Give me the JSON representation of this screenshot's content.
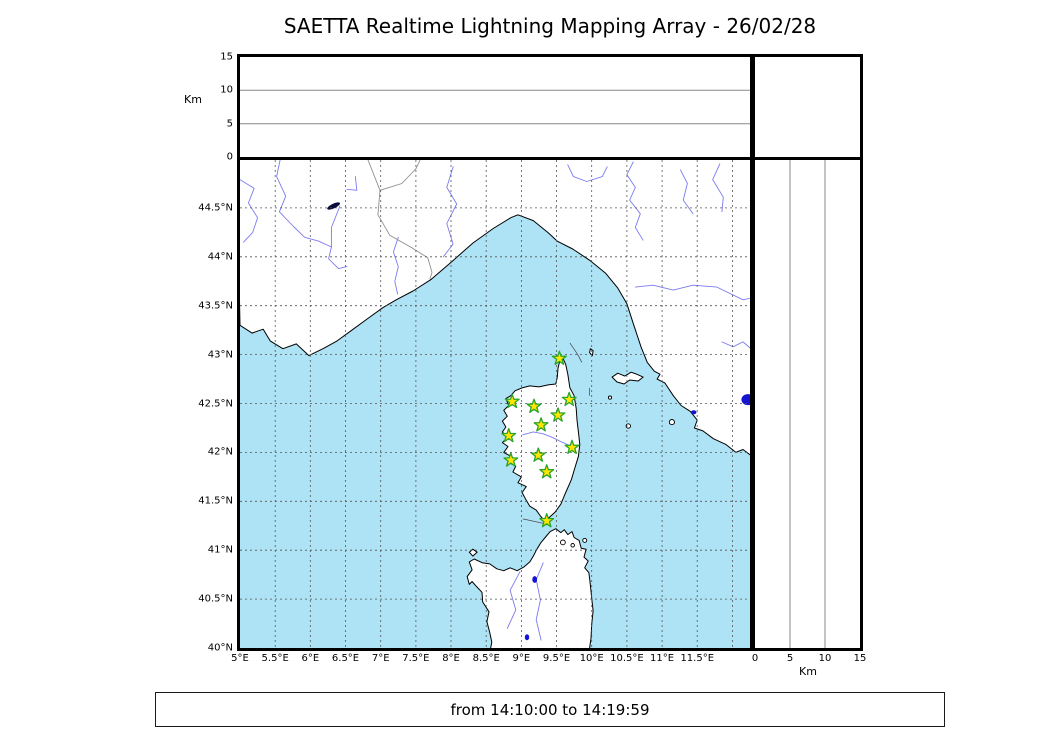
{
  "title": "SAETTA Realtime Lightning Mapping Array - 26/02/28",
  "time_range": "from 14:10:00 to 14:19:59",
  "colors": {
    "sea": "#aee2f5",
    "land": "#ffffff",
    "coast": "#000000",
    "river": "#7b7bf0",
    "country_border": "#909090",
    "grid": "#555555",
    "panel_grid": "#888888",
    "star_fill": "#ffe500",
    "star_stroke": "#28a428",
    "lake_blue": "#1414d2",
    "lake_dark": "#0a0a3c"
  },
  "altitude_axis": {
    "label": "Km",
    "max": 15,
    "ticks": [
      {
        "value": 0,
        "label": "0"
      },
      {
        "value": 5,
        "label": "5"
      },
      {
        "value": 10,
        "label": "10"
      },
      {
        "value": 15,
        "label": "15"
      }
    ],
    "gridlines": [
      5,
      10
    ]
  },
  "longitude_axis": {
    "min": 5,
    "max": 12.25,
    "grid_step": 0.5,
    "ticks": [
      {
        "value": 5,
        "label": "5°E"
      },
      {
        "value": 5.5,
        "label": "5.5°E"
      },
      {
        "value": 6,
        "label": "6°E"
      },
      {
        "value": 6.5,
        "label": "6.5°E"
      },
      {
        "value": 7,
        "label": "7°E"
      },
      {
        "value": 7.5,
        "label": "7.5°E"
      },
      {
        "value": 8,
        "label": "8°E"
      },
      {
        "value": 8.5,
        "label": "8.5°E"
      },
      {
        "value": 9,
        "label": "9°E"
      },
      {
        "value": 9.5,
        "label": "9.5°E"
      },
      {
        "value": 10,
        "label": "10°E"
      },
      {
        "value": 10.5,
        "label": "10.5°E"
      },
      {
        "value": 11,
        "label": "11°E"
      },
      {
        "value": 11.5,
        "label": "11.5°E"
      }
    ]
  },
  "latitude_axis": {
    "min": 40,
    "max": 44.99,
    "grid_step": 0.5,
    "ticks": [
      {
        "value": 44.5,
        "label": "44.5°N"
      },
      {
        "value": 44,
        "label": "44°N"
      },
      {
        "value": 43.5,
        "label": "43.5°N"
      },
      {
        "value": 43,
        "label": "43°N"
      },
      {
        "value": 42.5,
        "label": "42.5°N"
      },
      {
        "value": 42,
        "label": "42°N"
      },
      {
        "value": 41.5,
        "label": "41.5°N"
      },
      {
        "value": 41,
        "label": "41°N"
      },
      {
        "value": 40.5,
        "label": "40.5°N"
      },
      {
        "value": 40,
        "label": "40°N"
      }
    ]
  },
  "stations": [
    [
      9.54,
      42.96
    ],
    [
      8.87,
      42.52
    ],
    [
      9.18,
      42.47
    ],
    [
      9.68,
      42.54
    ],
    [
      9.52,
      42.38
    ],
    [
      9.28,
      42.28
    ],
    [
      8.82,
      42.17
    ],
    [
      9.72,
      42.05
    ],
    [
      8.85,
      41.92
    ],
    [
      9.24,
      41.97
    ],
    [
      9.36,
      41.8
    ],
    [
      9.36,
      41.3
    ]
  ],
  "map": {
    "land": {
      "continent": [
        [
          5.0,
          43.3
        ],
        [
          5.17,
          43.22
        ],
        [
          5.33,
          43.26
        ],
        [
          5.43,
          43.14
        ],
        [
          5.61,
          43.06
        ],
        [
          5.8,
          43.11
        ],
        [
          5.98,
          42.99
        ],
        [
          6.18,
          43.06
        ],
        [
          6.38,
          43.14
        ],
        [
          6.59,
          43.25
        ],
        [
          6.82,
          43.37
        ],
        [
          7.03,
          43.48
        ],
        [
          7.22,
          43.56
        ],
        [
          7.46,
          43.65
        ],
        [
          7.72,
          43.77
        ],
        [
          8.01,
          43.95
        ],
        [
          8.31,
          44.14
        ],
        [
          8.6,
          44.29
        ],
        [
          8.85,
          44.4
        ],
        [
          8.95,
          44.43
        ],
        [
          9.17,
          44.37
        ],
        [
          9.39,
          44.24
        ],
        [
          9.51,
          44.16
        ],
        [
          9.73,
          44.08
        ],
        [
          9.98,
          43.96
        ],
        [
          10.2,
          43.83
        ],
        [
          10.37,
          43.68
        ],
        [
          10.5,
          43.52
        ],
        [
          10.59,
          43.32
        ],
        [
          10.7,
          43.08
        ],
        [
          10.79,
          42.92
        ],
        [
          10.89,
          42.83
        ],
        [
          10.97,
          42.8
        ],
        [
          10.93,
          42.75
        ],
        [
          11.04,
          42.71
        ],
        [
          11.16,
          42.58
        ],
        [
          11.27,
          42.48
        ],
        [
          11.4,
          42.42
        ],
        [
          11.5,
          42.33
        ],
        [
          11.46,
          42.25
        ],
        [
          11.58,
          42.22
        ],
        [
          11.73,
          42.14
        ],
        [
          11.91,
          42.08
        ],
        [
          12.05,
          42.0
        ],
        [
          12.15,
          42.03
        ],
        [
          12.3,
          41.95
        ],
        [
          12.3,
          45.05
        ],
        [
          4.95,
          45.05
        ]
      ],
      "corsica": [
        [
          9.58,
          42.98
        ],
        [
          9.63,
          42.9
        ],
        [
          9.66,
          42.8
        ],
        [
          9.69,
          42.66
        ],
        [
          9.75,
          42.58
        ],
        [
          9.78,
          42.45
        ],
        [
          9.79,
          42.33
        ],
        [
          9.81,
          42.21
        ],
        [
          9.83,
          42.08
        ],
        [
          9.81,
          41.96
        ],
        [
          9.76,
          41.84
        ],
        [
          9.71,
          41.72
        ],
        [
          9.63,
          41.59
        ],
        [
          9.56,
          41.47
        ],
        [
          9.48,
          41.39
        ],
        [
          9.39,
          41.33
        ],
        [
          9.34,
          41.29
        ],
        [
          9.27,
          41.35
        ],
        [
          9.21,
          41.41
        ],
        [
          9.12,
          41.45
        ],
        [
          9.07,
          41.51
        ],
        [
          9.01,
          41.59
        ],
        [
          9.07,
          41.65
        ],
        [
          8.95,
          41.69
        ],
        [
          9.0,
          41.75
        ],
        [
          8.88,
          41.8
        ],
        [
          8.92,
          41.86
        ],
        [
          8.81,
          41.9
        ],
        [
          8.85,
          41.96
        ],
        [
          8.75,
          42.0
        ],
        [
          8.81,
          42.06
        ],
        [
          8.73,
          42.1
        ],
        [
          8.8,
          42.15
        ],
        [
          8.73,
          42.21
        ],
        [
          8.78,
          42.26
        ],
        [
          8.73,
          42.32
        ],
        [
          8.8,
          42.37
        ],
        [
          8.75,
          42.43
        ],
        [
          8.82,
          42.48
        ],
        [
          8.78,
          42.55
        ],
        [
          8.85,
          42.58
        ],
        [
          8.91,
          42.63
        ],
        [
          9.01,
          42.66
        ],
        [
          9.12,
          42.68
        ],
        [
          9.25,
          42.67
        ],
        [
          9.38,
          42.69
        ],
        [
          9.49,
          42.7
        ],
        [
          9.51,
          42.77
        ],
        [
          9.52,
          42.86
        ],
        [
          9.55,
          42.95
        ]
      ],
      "sardinia": [
        [
          9.41,
          41.19
        ],
        [
          9.49,
          41.22
        ],
        [
          9.56,
          41.18
        ],
        [
          9.61,
          41.21
        ],
        [
          9.66,
          41.16
        ],
        [
          9.72,
          41.19
        ],
        [
          9.75,
          41.13
        ],
        [
          9.82,
          41.1
        ],
        [
          9.85,
          41.02
        ],
        [
          9.92,
          41.01
        ],
        [
          9.89,
          40.93
        ],
        [
          9.95,
          40.89
        ],
        [
          9.9,
          40.82
        ],
        [
          9.96,
          40.77
        ],
        [
          9.98,
          40.65
        ],
        [
          10.0,
          40.51
        ],
        [
          10.02,
          40.38
        ],
        [
          10.0,
          40.24
        ],
        [
          9.99,
          40.1
        ],
        [
          9.96,
          39.95
        ],
        [
          8.55,
          39.95
        ],
        [
          8.58,
          40.06
        ],
        [
          8.55,
          40.16
        ],
        [
          8.51,
          40.27
        ],
        [
          8.54,
          40.37
        ],
        [
          8.45,
          40.47
        ],
        [
          8.44,
          40.57
        ],
        [
          8.36,
          40.63
        ],
        [
          8.3,
          40.68
        ],
        [
          8.26,
          40.65
        ],
        [
          8.23,
          40.73
        ],
        [
          8.3,
          40.8
        ],
        [
          8.26,
          40.88
        ],
        [
          8.33,
          40.91
        ],
        [
          8.45,
          40.87
        ],
        [
          8.55,
          40.86
        ],
        [
          8.65,
          40.81
        ],
        [
          8.75,
          40.79
        ],
        [
          8.84,
          40.82
        ],
        [
          8.94,
          40.79
        ],
        [
          9.04,
          40.83
        ],
        [
          9.12,
          40.88
        ],
        [
          9.17,
          40.94
        ],
        [
          9.22,
          41.01
        ],
        [
          9.28,
          41.08
        ],
        [
          9.35,
          41.14
        ]
      ],
      "elba": [
        [
          10.29,
          42.77
        ],
        [
          10.37,
          42.81
        ],
        [
          10.47,
          42.78
        ],
        [
          10.56,
          42.82
        ],
        [
          10.64,
          42.8
        ],
        [
          10.73,
          42.77
        ],
        [
          10.66,
          42.73
        ],
        [
          10.54,
          42.74
        ],
        [
          10.46,
          42.7
        ],
        [
          10.36,
          42.72
        ]
      ],
      "capraia": [
        [
          9.98,
          43.06
        ],
        [
          10.02,
          43.04
        ],
        [
          10.01,
          42.99
        ],
        [
          9.97,
          43.02
        ]
      ],
      "asinara": [
        [
          8.26,
          40.98
        ],
        [
          8.31,
          41.01
        ],
        [
          8.37,
          40.98
        ],
        [
          8.31,
          40.94
        ]
      ]
    },
    "island_dots": [
      {
        "lon": 10.52,
        "lat": 42.27,
        "r": 2.2
      },
      {
        "lon": 11.14,
        "lat": 42.31,
        "r": 2.6
      },
      {
        "lon": 10.26,
        "lat": 42.56,
        "r": 1.6
      },
      {
        "lon": 9.59,
        "lat": 41.08,
        "r": 2.4
      },
      {
        "lon": 9.73,
        "lat": 41.05,
        "r": 1.8
      },
      {
        "lon": 9.9,
        "lat": 41.1,
        "r": 2.0
      }
    ],
    "rivers": [
      [
        [
          5.0,
          44.79
        ],
        [
          5.2,
          44.7
        ],
        [
          5.12,
          44.55
        ],
        [
          5.25,
          44.4
        ],
        [
          5.18,
          44.25
        ],
        [
          5.05,
          44.15
        ]
      ],
      [
        [
          5.57,
          44.99
        ],
        [
          5.52,
          44.82
        ],
        [
          5.65,
          44.62
        ],
        [
          5.56,
          44.46
        ],
        [
          5.76,
          44.31
        ],
        [
          5.92,
          44.2
        ],
        [
          6.12,
          44.16
        ],
        [
          6.3,
          44.1
        ],
        [
          6.26,
          43.98
        ],
        [
          6.4,
          43.88
        ],
        [
          6.52,
          43.9
        ]
      ],
      [
        [
          6.42,
          44.52
        ],
        [
          6.3,
          44.3
        ],
        [
          6.3,
          44.1
        ]
      ],
      [
        [
          6.64,
          44.82
        ],
        [
          6.66,
          44.68
        ],
        [
          6.52,
          44.69
        ]
      ],
      [
        [
          8.03,
          44.92
        ],
        [
          7.94,
          44.71
        ],
        [
          8.08,
          44.54
        ],
        [
          7.94,
          44.34
        ],
        [
          8.03,
          44.13
        ],
        [
          7.89,
          44.0
        ]
      ],
      [
        [
          7.25,
          44.2
        ],
        [
          7.18,
          44.05
        ],
        [
          7.25,
          43.9
        ],
        [
          7.2,
          43.75
        ],
        [
          7.24,
          43.62
        ]
      ],
      [
        [
          9.66,
          44.94
        ],
        [
          9.74,
          44.82
        ],
        [
          9.93,
          44.77
        ],
        [
          10.15,
          44.82
        ],
        [
          10.22,
          44.92
        ]
      ],
      [
        [
          10.59,
          44.97
        ],
        [
          10.5,
          44.84
        ],
        [
          10.62,
          44.71
        ],
        [
          10.54,
          44.58
        ],
        [
          10.69,
          44.44
        ],
        [
          10.62,
          44.3
        ],
        [
          10.73,
          44.17
        ]
      ],
      [
        [
          11.26,
          44.89
        ],
        [
          11.36,
          44.75
        ],
        [
          11.3,
          44.58
        ],
        [
          11.44,
          44.44
        ]
      ],
      [
        [
          11.82,
          44.95
        ],
        [
          11.72,
          44.79
        ],
        [
          11.87,
          44.61
        ],
        [
          11.85,
          44.46
        ]
      ],
      [
        [
          10.62,
          43.69
        ],
        [
          10.87,
          43.71
        ],
        [
          11.16,
          43.66
        ],
        [
          11.44,
          43.71
        ],
        [
          11.78,
          43.69
        ],
        [
          12.15,
          43.56
        ],
        [
          12.28,
          43.58
        ]
      ],
      [
        [
          11.85,
          43.13
        ],
        [
          12.01,
          43.08
        ],
        [
          12.15,
          43.13
        ],
        [
          12.28,
          43.05
        ]
      ],
      [
        [
          9.02,
          42.18
        ],
        [
          9.17,
          42.21
        ],
        [
          9.31,
          42.19
        ],
        [
          9.45,
          42.15
        ],
        [
          9.59,
          42.1
        ],
        [
          9.72,
          42.06
        ]
      ],
      [
        [
          9.31,
          40.87
        ],
        [
          9.21,
          40.7
        ],
        [
          9.27,
          40.49
        ],
        [
          9.21,
          40.29
        ],
        [
          9.28,
          40.08
        ]
      ],
      [
        [
          8.98,
          40.78
        ],
        [
          8.84,
          40.59
        ],
        [
          8.92,
          40.39
        ],
        [
          8.8,
          40.2
        ]
      ]
    ],
    "borders": [
      [
        [
          6.82,
          44.99
        ],
        [
          6.99,
          44.68
        ],
        [
          6.96,
          44.43
        ],
        [
          7.13,
          44.22
        ],
        [
          7.45,
          44.09
        ],
        [
          7.67,
          43.99
        ],
        [
          7.73,
          43.84
        ],
        [
          7.7,
          43.77
        ]
      ],
      [
        [
          6.99,
          44.68
        ],
        [
          7.3,
          44.75
        ],
        [
          7.5,
          44.9
        ],
        [
          7.56,
          44.99
        ]
      ]
    ],
    "misc_lines": [
      [
        [
          9.69,
          43.12
        ],
        [
          9.8,
          43.0
        ],
        [
          9.86,
          42.92
        ]
      ],
      [
        [
          9.97,
          42.66
        ],
        [
          9.97,
          42.58
        ]
      ],
      [
        [
          9.02,
          41.32
        ],
        [
          9.41,
          41.26
        ]
      ]
    ],
    "lakes": [
      {
        "lon": 6.33,
        "lat": 44.52,
        "rx": 7,
        "ry": 2.3,
        "rot": -25,
        "color": "#0a0a3c"
      },
      {
        "lon": 12.22,
        "lat": 42.54,
        "rx": 6.5,
        "ry": 5.5,
        "rot": 0,
        "color": "#1414d2"
      },
      {
        "lon": 11.45,
        "lat": 42.41,
        "rx": 2.8,
        "ry": 2.0,
        "rot": 0,
        "color": "#1414d2"
      },
      {
        "lon": 9.19,
        "lat": 40.7,
        "rx": 2.4,
        "ry": 3.4,
        "rot": 0,
        "color": "#1414d2"
      },
      {
        "lon": 9.08,
        "lat": 40.11,
        "rx": 2.2,
        "ry": 3.0,
        "rot": 0,
        "color": "#1414d2"
      }
    ]
  }
}
